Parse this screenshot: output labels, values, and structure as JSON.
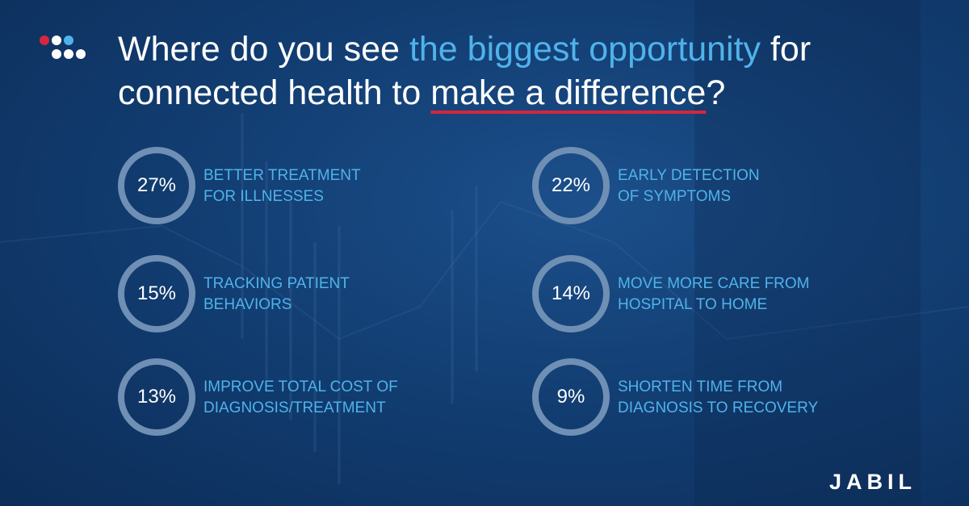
{
  "title": {
    "part1": "Where do you see ",
    "highlight": "the biggest opportunity",
    "part2": " for connected health to ",
    "underlined": "make a difference",
    "end": "?"
  },
  "chart_data": {
    "type": "table",
    "title": "Where do you see the biggest opportunity for connected health to make a difference?",
    "items": [
      {
        "value": "27%",
        "label_line1": "BETTER TREATMENT",
        "label_line2": "FOR ILLNESSES"
      },
      {
        "value": "22%",
        "label_line1": "EARLY DETECTION",
        "label_line2": "OF SYMPTOMS"
      },
      {
        "value": "15%",
        "label_line1": "TRACKING PATIENT",
        "label_line2": "BEHAVIORS"
      },
      {
        "value": "14%",
        "label_line1": "MOVE MORE CARE FROM",
        "label_line2": "HOSPITAL TO HOME"
      },
      {
        "value": "13%",
        "label_line1": "IMPROVE TOTAL COST OF",
        "label_line2": "DIAGNOSIS/TREATMENT"
      },
      {
        "value": "9%",
        "label_line1": "SHORTEN TIME FROM",
        "label_line2": "DIAGNOSIS TO RECOVERY"
      }
    ]
  },
  "brand": "JABIL",
  "colors": {
    "background": "#123e73",
    "accent_blue": "#4fb3ea",
    "underline_red": "#d7263d",
    "ring_gray": "#6f8fb4"
  }
}
